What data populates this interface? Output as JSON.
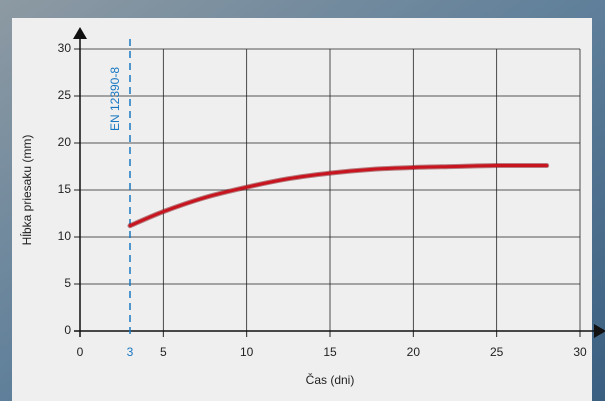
{
  "chart_data": {
    "type": "line",
    "x_label": "Čas (dni)",
    "y_label": "Hĺbka priesaku (mm)",
    "x": [
      3,
      5,
      7.5,
      10,
      12.5,
      15,
      17.5,
      20,
      22.5,
      25,
      28
    ],
    "series": [
      {
        "color": "#c8141e",
        "values": [
          11.2,
          12.7,
          14.2,
          15.3,
          16.2,
          16.8,
          17.2,
          17.4,
          17.5,
          17.6,
          17.6
        ]
      }
    ],
    "xlim": [
      0,
      30
    ],
    "xticks": [
      0,
      5,
      10,
      15,
      20,
      25,
      30
    ],
    "ylim": [
      0,
      30
    ],
    "yticks": [
      0,
      5,
      10,
      15,
      20,
      25,
      30
    ],
    "grid": true,
    "annotations": [
      {
        "x": 3,
        "label": "EN 12390-8",
        "color": "#1a78c2"
      }
    ]
  }
}
